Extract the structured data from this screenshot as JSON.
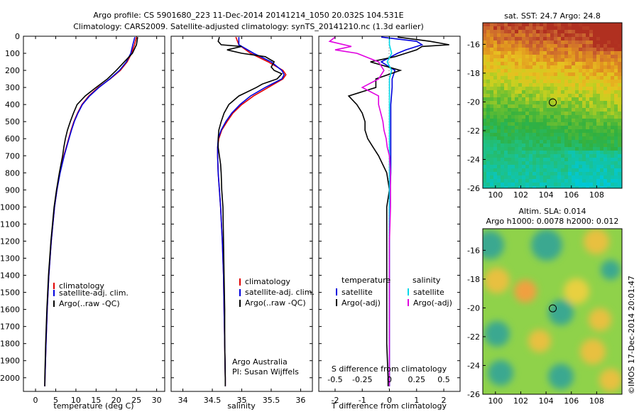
{
  "header": {
    "line1": "Argo profile: CS 5901680_223 11-Dec-2014 20141214_1050 20.032S 104.531E",
    "line2": "Climatology: CARS2009. Satellite-adjusted climatology: synTS_20141210.nc (1.3d earlier)"
  },
  "colors": {
    "climatology": "#e00000",
    "satellite_adj": "#0000dd",
    "argo": "#000000",
    "salinity_satellite": "#00d8e8",
    "salinity_argo": "#e000e0"
  },
  "chart_data": [
    {
      "id": "temperature",
      "type": "line",
      "xlabel": "temperature (deg C)",
      "ylabel": "",
      "xlim": [
        -3,
        32
      ],
      "ylim": [
        2080,
        0
      ],
      "xticks": [
        0,
        5,
        10,
        15,
        20,
        25,
        30
      ],
      "yticks": [
        0,
        100,
        200,
        300,
        400,
        500,
        600,
        700,
        800,
        900,
        1000,
        1100,
        1200,
        1300,
        1400,
        1500,
        1600,
        1700,
        1800,
        1900,
        2000
      ],
      "legend": [
        "climatology",
        "satellite-adj. clim.",
        "Argo(..raw -QC)"
      ],
      "series": [
        {
          "name": "climatology",
          "color": "#e00000",
          "depth": [
            5,
            50,
            100,
            150,
            200,
            250,
            300,
            350,
            400,
            450,
            500,
            550,
            600,
            650,
            700,
            800,
            900,
            1000,
            1200,
            1400,
            1600,
            1800,
            2000,
            2050
          ],
          "values": [
            25.0,
            24.5,
            23.8,
            22.7,
            21.0,
            18.5,
            15.5,
            13.2,
            11.5,
            10.4,
            9.5,
            8.8,
            8.2,
            7.6,
            7.0,
            6.0,
            5.3,
            4.7,
            3.9,
            3.3,
            2.9,
            2.6,
            2.35,
            2.3
          ]
        },
        {
          "name": "satellite-adj. clim.",
          "color": "#0000dd",
          "depth": [
            5,
            50,
            100,
            150,
            200,
            250,
            300,
            350,
            400,
            450,
            500,
            550,
            600,
            650,
            700,
            800,
            900,
            1000,
            1200,
            1400,
            1600,
            1800,
            2000,
            2050
          ],
          "values": [
            24.6,
            24.1,
            23.6,
            22.5,
            20.8,
            18.4,
            15.7,
            13.4,
            11.6,
            10.5,
            9.6,
            8.9,
            8.3,
            7.7,
            7.1,
            6.1,
            5.3,
            4.7,
            3.9,
            3.3,
            2.9,
            2.6,
            2.35,
            2.3
          ]
        },
        {
          "name": "Argo(..raw -QC)",
          "color": "#000000",
          "depth": [
            5,
            50,
            100,
            150,
            200,
            250,
            300,
            350,
            400,
            450,
            500,
            550,
            600,
            650,
            700,
            800,
            900,
            1000,
            1200,
            1400,
            1600,
            1800,
            2000,
            2050
          ],
          "values": [
            25.3,
            25.0,
            24.0,
            22.0,
            20.0,
            17.8,
            15.0,
            12.3,
            10.3,
            9.4,
            8.6,
            7.9,
            7.4,
            7.0,
            6.7,
            5.9,
            5.2,
            4.6,
            3.8,
            3.2,
            2.8,
            2.5,
            2.3,
            2.3
          ]
        }
      ]
    },
    {
      "id": "salinity",
      "type": "line",
      "xlabel": "salinity",
      "ylabel": "",
      "xlim": [
        33.8,
        36.2
      ],
      "ylim": [
        2080,
        0
      ],
      "xticks": [
        34,
        34.5,
        35,
        35.5,
        36
      ],
      "legend": [
        "climatology",
        "satellite-adj. clim.",
        "Argo(..raw -QC)"
      ],
      "annotation": [
        "Argo Australia",
        "PI: Susan Wijffels"
      ],
      "series": [
        {
          "name": "climatology",
          "color": "#e00000",
          "depth": [
            5,
            50,
            100,
            150,
            200,
            225,
            250,
            300,
            350,
            400,
            450,
            500,
            550,
            600,
            650,
            700,
            800,
            900,
            1000,
            1200,
            1400,
            1600,
            1800,
            2000,
            2050
          ],
          "values": [
            34.9,
            34.95,
            35.15,
            35.45,
            35.7,
            35.75,
            35.7,
            35.45,
            35.2,
            35.0,
            34.85,
            34.75,
            34.66,
            34.61,
            34.59,
            34.59,
            34.6,
            34.62,
            34.64,
            34.67,
            34.69,
            34.7,
            34.71,
            34.72,
            34.72
          ]
        },
        {
          "name": "satellite-adj. clim.",
          "color": "#0000dd",
          "depth": [
            5,
            50,
            100,
            150,
            200,
            225,
            250,
            300,
            350,
            400,
            450,
            500,
            550,
            600,
            650,
            700,
            800,
            900,
            1000,
            1200,
            1400,
            1600,
            1800,
            2000,
            2050
          ],
          "values": [
            34.95,
            34.95,
            35.2,
            35.5,
            35.68,
            35.72,
            35.68,
            35.4,
            35.15,
            34.97,
            34.83,
            34.73,
            34.65,
            34.6,
            34.59,
            34.59,
            34.6,
            34.62,
            34.64,
            34.67,
            34.69,
            34.7,
            34.71,
            34.72,
            34.72
          ]
        },
        {
          "name": "Argo(..raw -QC)",
          "color": "#000000",
          "depth": [
            5,
            30,
            50,
            60,
            80,
            100,
            120,
            150,
            180,
            200,
            220,
            250,
            280,
            300,
            350,
            400,
            450,
            500,
            550,
            600,
            650,
            700,
            750,
            800,
            900,
            1000,
            1200,
            1400,
            1600,
            1800,
            2000,
            2050
          ],
          "values": [
            34.62,
            34.6,
            34.65,
            35.0,
            34.75,
            35.0,
            35.4,
            35.55,
            35.5,
            35.55,
            35.68,
            35.6,
            35.35,
            35.25,
            34.95,
            34.78,
            34.7,
            34.65,
            34.61,
            34.6,
            34.6,
            34.62,
            34.64,
            34.65,
            34.66,
            34.68,
            34.69,
            34.7,
            34.71,
            34.71,
            34.72,
            34.72
          ]
        }
      ]
    },
    {
      "id": "differences",
      "type": "line",
      "xlabel": "T difference from climatology",
      "xlabel_top": "S difference from climatology",
      "ylabel": "",
      "xlim": [
        -2.6,
        2.6
      ],
      "ylim": [
        2080,
        0
      ],
      "xticks": [
        -2,
        -1,
        0,
        1,
        2
      ],
      "xticks_top": [
        "-0.5",
        "-0.25",
        "0",
        "0.25",
        "0.5"
      ],
      "legend_temperature": {
        "title": "temperature",
        "items": [
          "satellite",
          "Argo(-adj)"
        ]
      },
      "legend_salinity": {
        "title": "salinity",
        "items": [
          "satellite",
          "Argo(-adj)"
        ]
      },
      "series": [
        {
          "name": "temperature satellite",
          "color": "#0000dd",
          "depth": [
            5,
            30,
            50,
            80,
            100,
            150,
            200,
            250,
            300,
            400,
            600,
            800,
            1000,
            1500,
            2050
          ],
          "values": [
            -0.3,
            1.0,
            1.2,
            0.6,
            0.3,
            -0.3,
            0.2,
            0.1,
            0.1,
            0.05,
            0.05,
            0.05,
            0.0,
            0.0,
            0.0
          ]
        },
        {
          "name": "temperature Argo(-adj)",
          "color": "#000000",
          "depth": [
            5,
            30,
            50,
            60,
            80,
            100,
            120,
            150,
            200,
            250,
            300,
            350,
            400,
            450,
            500,
            550,
            600,
            650,
            700,
            800,
            900,
            1000,
            1200,
            1400,
            1600,
            1800,
            2000,
            2050
          ],
          "values": [
            0.3,
            1.5,
            2.2,
            1.2,
            1.0,
            0.6,
            0.2,
            -0.7,
            0.4,
            -0.5,
            -0.5,
            -1.5,
            -1.2,
            -1.0,
            -0.9,
            -0.9,
            -0.8,
            -0.6,
            -0.4,
            -0.1,
            0.0,
            -0.1,
            -0.1,
            -0.1,
            -0.1,
            -0.1,
            -0.05,
            -0.05
          ]
        },
        {
          "name": "salinity satellite",
          "color": "#00d8e8",
          "depth": [
            5,
            50,
            100,
            150,
            200,
            250,
            300,
            400,
            600,
            800,
            1000,
            1500,
            2050
          ],
          "values": [
            0.0,
            0.0,
            0.02,
            -0.02,
            0.02,
            0.0,
            0.0,
            0.0,
            0.0,
            0.0,
            0.0,
            0.0,
            0.0
          ]
        },
        {
          "name": "salinity Argo(-adj)",
          "color": "#e000e0",
          "depth": [
            5,
            30,
            60,
            80,
            100,
            150,
            200,
            250,
            300,
            350,
            400,
            450,
            500,
            550,
            600,
            650,
            700,
            800,
            900,
            1000,
            1200,
            1500,
            1800,
            2050
          ],
          "values": [
            -0.5,
            -0.55,
            -0.35,
            -0.5,
            -0.3,
            -0.1,
            -0.05,
            -0.1,
            -0.25,
            -0.1,
            -0.1,
            -0.08,
            -0.06,
            -0.05,
            -0.03,
            -0.02,
            0.0,
            0.01,
            0.01,
            0.01,
            0.0,
            0.0,
            0.0,
            0.0
          ]
        }
      ]
    },
    {
      "id": "sst_map",
      "type": "heatmap",
      "title": "sat. SST: 24.7 Argo: 24.8",
      "xlim": [
        99,
        110
      ],
      "ylim": [
        -26,
        -14.5
      ],
      "xticks": [
        100,
        102,
        104,
        106,
        108
      ],
      "yticks": [
        -16,
        -18,
        -20,
        -22,
        -24,
        -26
      ],
      "marker": {
        "lon": 104.531,
        "lat": -20.032
      }
    },
    {
      "id": "sla_map",
      "type": "heatmap",
      "title_lines": [
        "Altim. SLA: 0.014",
        "Argo h1000: 0.0078 h2000: 0.012"
      ],
      "xlim": [
        99,
        110
      ],
      "ylim": [
        -26,
        -14.5
      ],
      "xticks": [
        100,
        102,
        104,
        106,
        108
      ],
      "yticks": [
        -16,
        -18,
        -20,
        -22,
        -24,
        -26
      ],
      "marker": {
        "lon": 104.531,
        "lat": -20.032
      }
    }
  ],
  "credit": "©IMOS 17-Dec-2014 20:01:47"
}
